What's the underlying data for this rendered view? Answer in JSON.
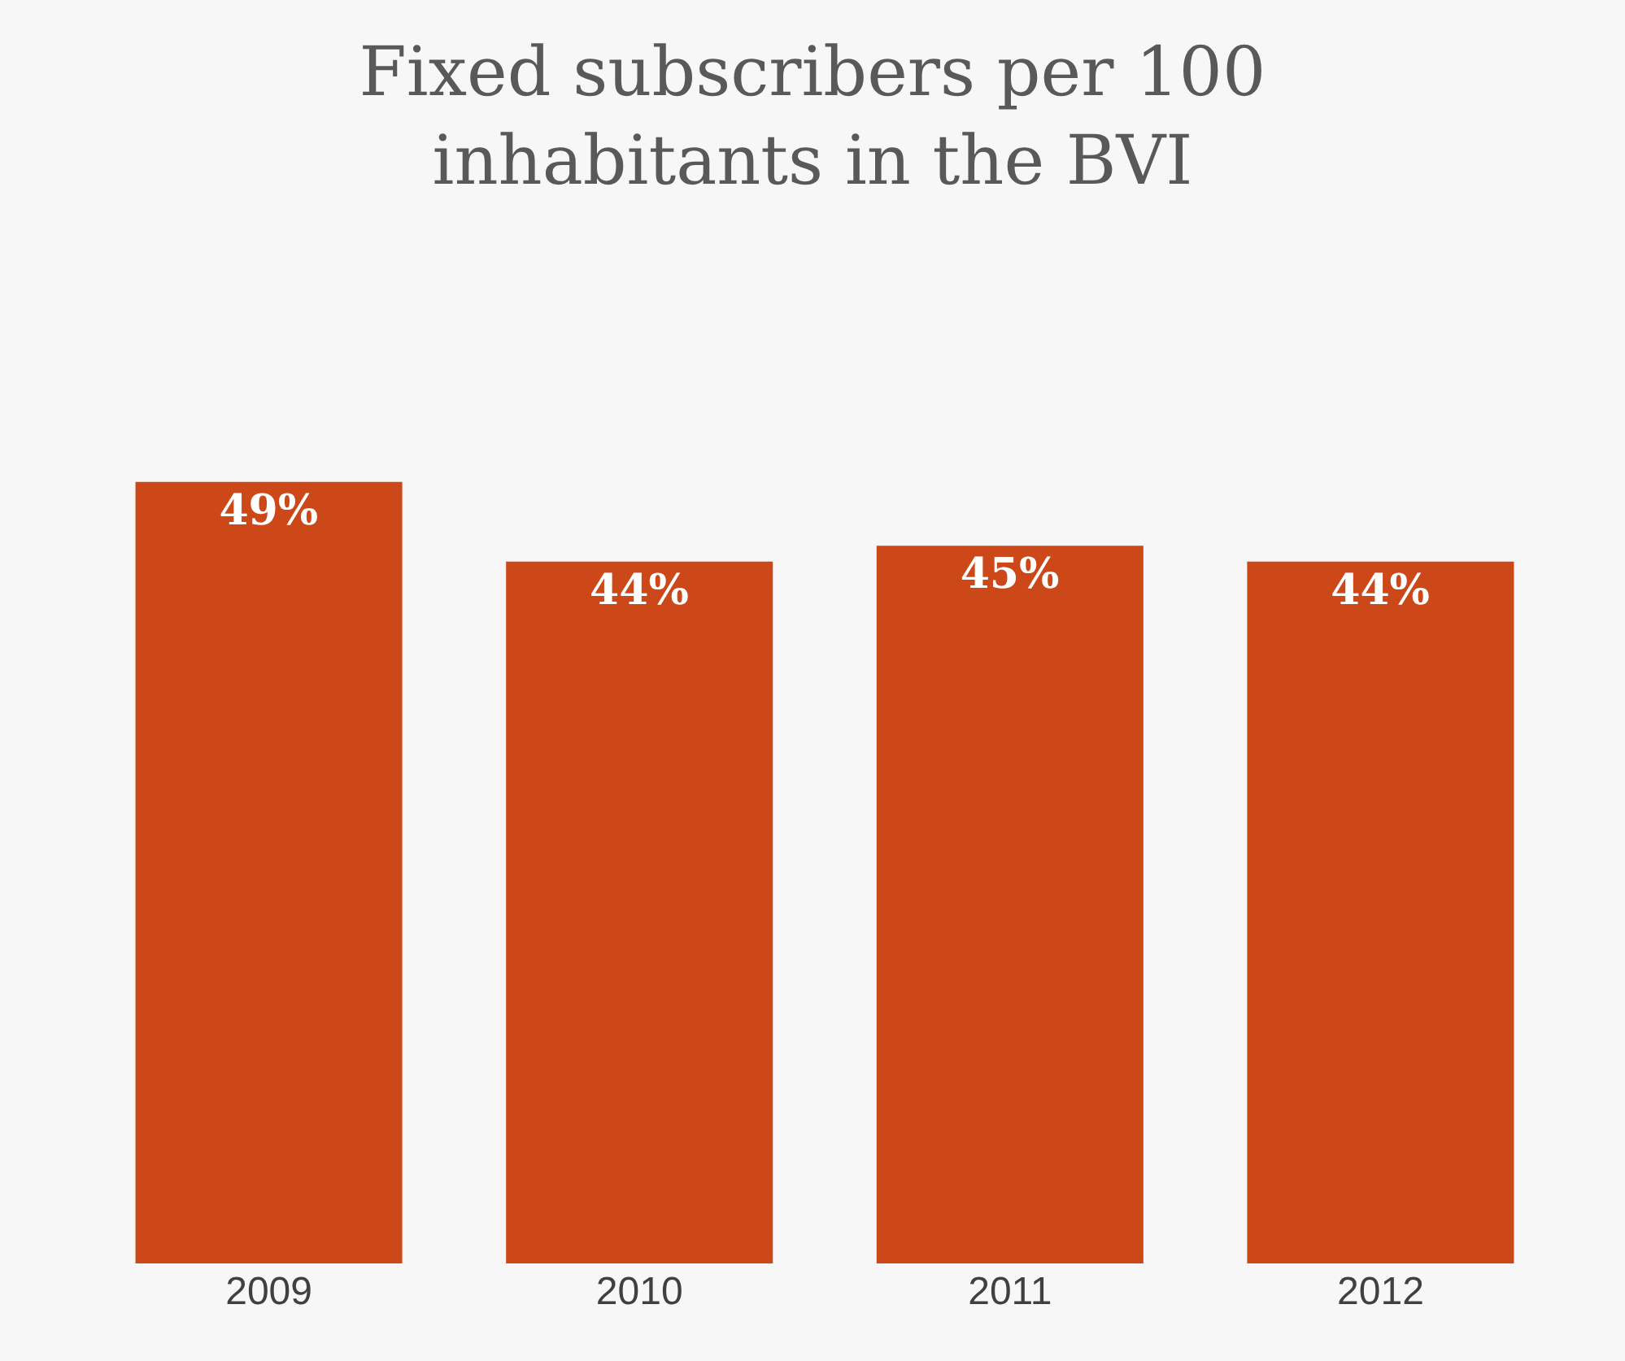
{
  "chart_data": {
    "type": "bar",
    "title": "Fixed subscribers per 100\ninhabitants in the BVI",
    "categories": [
      "2009",
      "2010",
      "2011",
      "2012"
    ],
    "values": [
      49,
      44,
      45,
      44
    ],
    "value_labels": [
      "49%",
      "44%",
      "45%",
      "44%"
    ],
    "color": "#cc4818",
    "tick_labels": "x",
    "grid": false,
    "legend": false
  }
}
